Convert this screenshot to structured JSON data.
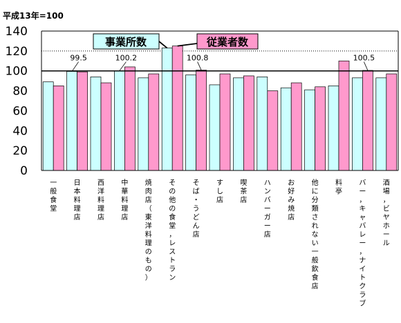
{
  "chart_data": {
    "type": "bar",
    "unit_note": "平成13年=100",
    "ylim": [
      0,
      140
    ],
    "yticks": [
      0,
      20,
      40,
      60,
      80,
      100,
      120,
      140
    ],
    "reference_line": 100,
    "grid": "dotted line at 120",
    "categories": [
      "一般食堂",
      "日本料理店",
      "西洋料理店",
      "中華料理店",
      "焼肉店（東洋料理のもの）",
      "その他の食堂，レストラン",
      "そば・うどん店",
      "すし店",
      "喫茶店",
      "ハンバーガー店",
      "お好み焼店",
      "他に分類されない一般飲食店",
      "料亭",
      "バー，キャバレー，ナイトクラブ",
      "酒場，ビヤホール"
    ],
    "series": [
      {
        "name": "事業所数",
        "color": "#ccffff",
        "values": [
          89,
          99.5,
          94,
          100.2,
          93,
          123,
          96,
          86,
          93,
          94,
          83,
          81,
          85,
          93,
          93
        ]
      },
      {
        "name": "従業者数",
        "color": "#ff99cc",
        "values": [
          85,
          99,
          88,
          104,
          97,
          125,
          100.8,
          97,
          95,
          80,
          88,
          84,
          110,
          100.5,
          97
        ]
      }
    ],
    "data_labels": [
      {
        "category_index": 1,
        "text": "99.5"
      },
      {
        "category_index": 3,
        "text": "100.2"
      },
      {
        "category_index": 6,
        "text": "100.8"
      },
      {
        "category_index": 13,
        "text": "100.5"
      }
    ]
  }
}
